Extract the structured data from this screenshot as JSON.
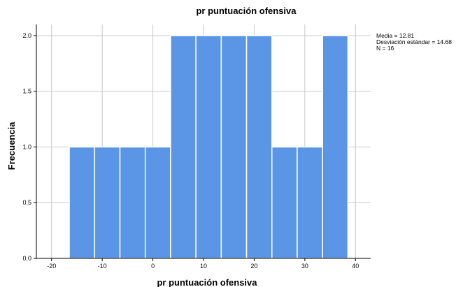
{
  "chart_data": {
    "type": "bar",
    "title": "pr puntuación ofensiva",
    "xlabel": "pr puntuación ofensiva",
    "ylabel": "Frecuencia",
    "bins": [
      {
        "start": -16.5,
        "end": -11.5,
        "count": 1
      },
      {
        "start": -11.5,
        "end": -6.5,
        "count": 1
      },
      {
        "start": -6.5,
        "end": -1.5,
        "count": 1
      },
      {
        "start": -1.5,
        "end": 3.5,
        "count": 1
      },
      {
        "start": 3.5,
        "end": 8.5,
        "count": 2
      },
      {
        "start": 8.5,
        "end": 13.5,
        "count": 2
      },
      {
        "start": 13.5,
        "end": 18.5,
        "count": 2
      },
      {
        "start": 18.5,
        "end": 23.5,
        "count": 2
      },
      {
        "start": 23.5,
        "end": 28.5,
        "count": 1
      },
      {
        "start": 28.5,
        "end": 33.5,
        "count": 1
      },
      {
        "start": 33.5,
        "end": 38.5,
        "count": 2
      }
    ],
    "xlim": [
      -23,
      43
    ],
    "ylim": [
      0,
      2.1
    ],
    "xticks": [
      "-20",
      "-10",
      "0",
      "10",
      "20",
      "30",
      "40"
    ],
    "yticks": [
      "0.0",
      "0.5",
      "1.0",
      "1.5",
      "2.0"
    ],
    "grid": true,
    "bar_color": "#5b96e6",
    "stats": {
      "media": "Media = 12.81",
      "desviacion": "Desviación estándar = 14.68",
      "n": "N = 16"
    }
  }
}
